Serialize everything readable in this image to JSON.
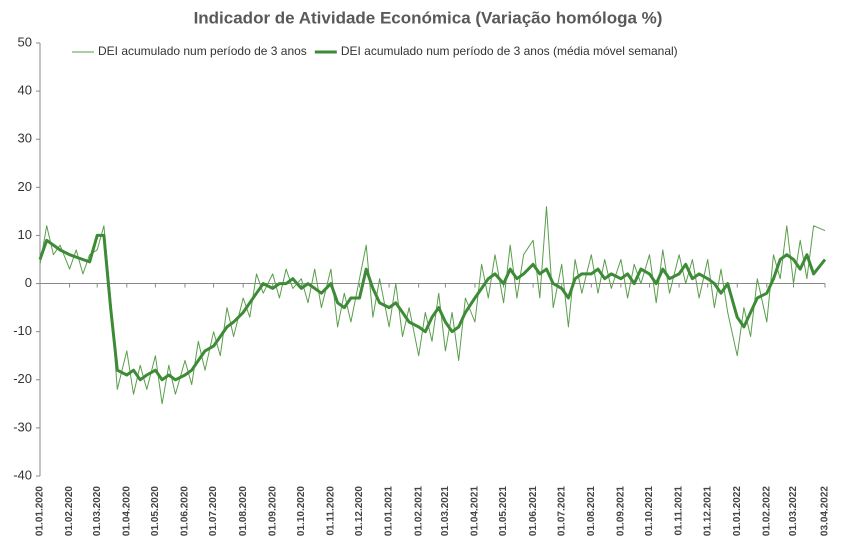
{
  "chart_data": {
    "type": "line",
    "title": "Indicador de Atividade Económica (Variação homóloga %)",
    "x": [
      "01.01.2020",
      "08.01.2020",
      "15.01.2020",
      "22.01.2020",
      "01.02.2020",
      "08.02.2020",
      "15.02.2020",
      "22.02.2020",
      "01.03.2020",
      "08.03.2020",
      "15.03.2020",
      "22.03.2020",
      "01.04.2020",
      "08.04.2020",
      "15.04.2020",
      "22.04.2020",
      "01.05.2020",
      "08.05.2020",
      "15.05.2020",
      "22.05.2020",
      "01.06.2020",
      "08.06.2020",
      "15.06.2020",
      "22.06.2020",
      "01.07.2020",
      "08.07.2020",
      "15.07.2020",
      "22.07.2020",
      "01.08.2020",
      "08.08.2020",
      "15.08.2020",
      "22.08.2020",
      "01.09.2020",
      "08.09.2020",
      "15.09.2020",
      "22.09.2020",
      "01.10.2020",
      "08.10.2020",
      "15.10.2020",
      "22.10.2020",
      "01.11.2020",
      "08.11.2020",
      "15.11.2020",
      "22.11.2020",
      "01.12.2020",
      "08.12.2020",
      "15.12.2020",
      "22.12.2020",
      "01.01.2021",
      "08.01.2021",
      "15.01.2021",
      "22.01.2021",
      "01.02.2021",
      "08.02.2021",
      "15.02.2021",
      "22.02.2021",
      "01.03.2021",
      "08.03.2021",
      "15.03.2021",
      "22.03.2021",
      "01.04.2021",
      "08.04.2021",
      "15.04.2021",
      "22.04.2021",
      "01.05.2021",
      "08.05.2021",
      "15.05.2021",
      "22.05.2021",
      "01.06.2021",
      "08.06.2021",
      "15.06.2021",
      "22.06.2021",
      "01.07.2021",
      "08.07.2021",
      "15.07.2021",
      "22.07.2021",
      "01.08.2021",
      "08.08.2021",
      "15.08.2021",
      "22.08.2021",
      "01.09.2021",
      "08.09.2021",
      "15.09.2021",
      "22.09.2021",
      "01.10.2021",
      "08.10.2021",
      "15.10.2021",
      "22.10.2021",
      "01.11.2021",
      "08.11.2021",
      "15.11.2021",
      "22.11.2021",
      "01.12.2021",
      "08.12.2021",
      "15.12.2021",
      "22.12.2021",
      "01.01.2022",
      "08.01.2022",
      "15.01.2022",
      "22.01.2022",
      "01.02.2022",
      "08.02.2022",
      "15.02.2022",
      "22.02.2022",
      "01.03.2022",
      "08.03.2022",
      "15.03.2022",
      "22.03.2022",
      "03.04.2022"
    ],
    "series": [
      {
        "name": "DEI acumulado num período de 3 anos",
        "color": "#5a9e4b",
        "width": 1,
        "values": [
          4,
          12,
          6,
          8,
          3,
          7,
          2,
          6,
          7,
          12,
          -3,
          -22,
          -14,
          -23,
          -17,
          -22,
          -15,
          -25,
          -17,
          -23,
          -16,
          -21,
          -12,
          -18,
          -10,
          -15,
          -5,
          -11,
          -3,
          -7,
          2,
          -2,
          2,
          -3,
          3,
          -1,
          1,
          -4,
          3,
          -5,
          3,
          -9,
          -2,
          -8,
          1,
          8,
          -7,
          1,
          -9,
          0,
          -11,
          -5,
          -15,
          -6,
          -12,
          -2,
          -14,
          -6,
          -16,
          -3,
          -8,
          4,
          -3,
          6,
          -4,
          8,
          -3,
          6,
          9,
          -3,
          16,
          -5,
          4,
          -9,
          5,
          -2,
          6,
          -2,
          5,
          -1,
          5,
          -3,
          4,
          0,
          6,
          -4,
          7,
          -2,
          6,
          0,
          5,
          -3,
          5,
          -5,
          3,
          -6,
          -15,
          -5,
          -11,
          1,
          -8,
          6,
          1,
          12,
          0,
          9,
          1,
          12,
          11
        ]
      },
      {
        "name": "DEI acumulado num período de 3 anos (média móvel semanal)",
        "color": "#3d8b37",
        "width": 3,
        "values": [
          5,
          9,
          8,
          7,
          6,
          5.5,
          5,
          4.5,
          10,
          10,
          -5,
          -18,
          -19,
          -18,
          -20,
          -19,
          -18,
          -20,
          -19,
          -20,
          -19,
          -18,
          -16,
          -14,
          -13,
          -11,
          -9,
          -8,
          -6,
          -4,
          -2,
          0,
          -1,
          0,
          0,
          1,
          -1,
          0,
          -1,
          -2,
          0,
          -4,
          -5,
          -3,
          -3,
          3,
          -1,
          -4,
          -5,
          -4,
          -6,
          -8,
          -9,
          -10,
          -7,
          -5,
          -8,
          -10,
          -9,
          -6,
          -3,
          -1,
          1,
          2,
          0,
          3,
          1,
          2,
          4,
          2,
          3,
          0,
          -1,
          -3,
          1,
          2,
          2,
          3,
          1,
          2,
          1,
          2,
          0,
          3,
          2,
          0,
          3,
          1,
          2,
          4,
          1,
          2,
          1,
          0,
          -2,
          0,
          -7,
          -9,
          -6,
          -3,
          -2,
          1,
          5,
          6,
          5,
          3,
          6,
          2,
          5
        ]
      }
    ],
    "xlim": [
      "01.01.2020",
      "03.04.2022"
    ],
    "xticks": [
      "01.01.2020",
      "01.02.2020",
      "01.03.2020",
      "01.04.2020",
      "01.05.2020",
      "01.06.2020",
      "01.07.2020",
      "01.08.2020",
      "01.09.2020",
      "01.10.2020",
      "01.11.2020",
      "01.12.2020",
      "01.01.2021",
      "01.02.2021",
      "01.03.2021",
      "01.04.2021",
      "01.05.2021",
      "01.06.2021",
      "01.07.2021",
      "01.08.2021",
      "01.09.2021",
      "01.10.2021",
      "01.11.2021",
      "01.12.2021",
      "01.01.2022",
      "01.02.2022",
      "01.03.2022",
      "03.04.2022"
    ],
    "ylim": [
      -40,
      50
    ],
    "yticks": [
      -40,
      -30,
      -20,
      -10,
      0,
      10,
      20,
      30,
      40,
      50
    ]
  }
}
